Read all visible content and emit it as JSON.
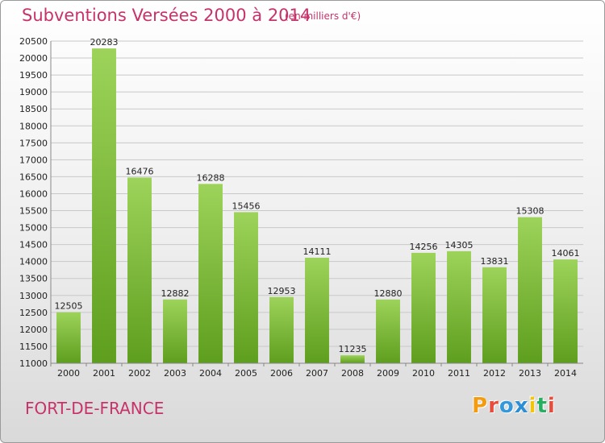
{
  "chart_data": {
    "type": "bar",
    "title": "Subventions Versées 2000 à 2014",
    "subtitle": "(en milliers d'€)",
    "categories": [
      "2000",
      "2001",
      "2002",
      "2003",
      "2004",
      "2005",
      "2006",
      "2007",
      "2008",
      "2009",
      "2010",
      "2011",
      "2012",
      "2013",
      "2014"
    ],
    "values": [
      12505,
      20283,
      16476,
      12882,
      16288,
      15456,
      12953,
      14111,
      11235,
      12880,
      14256,
      14305,
      13831,
      15308,
      14061
    ],
    "ylim": [
      11000,
      20500
    ],
    "ytick_step": 500,
    "grid": true,
    "bar_color": "#7dc13a"
  },
  "footer": {
    "city": "FORT-DE-FRANCE",
    "logo_text": "Proxiti",
    "logo_letters": [
      "P",
      "r",
      "o",
      "x",
      "i",
      "t",
      "i"
    ],
    "logo_colors": [
      "#f39c12",
      "#e74c3c",
      "#3498db",
      "#2c8fd6",
      "#f1c40f",
      "#27ae60",
      "#e74c3c"
    ]
  }
}
